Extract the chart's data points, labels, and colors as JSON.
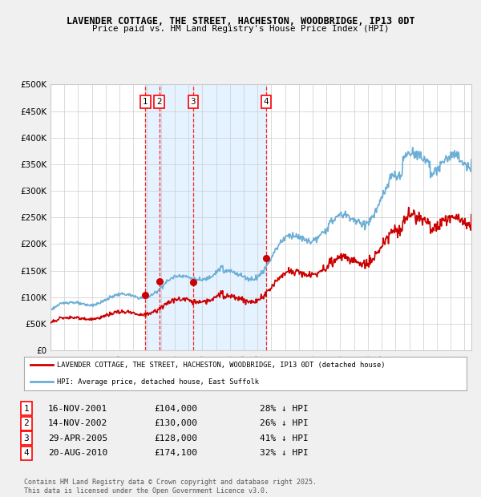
{
  "title": "LAVENDER COTTAGE, THE STREET, HACHESTON, WOODBRIDGE, IP13 0DT",
  "subtitle": "Price paid vs. HM Land Registry's House Price Index (HPI)",
  "ylim": [
    0,
    500000
  ],
  "yticks": [
    0,
    50000,
    100000,
    150000,
    200000,
    250000,
    300000,
    350000,
    400000,
    450000,
    500000
  ],
  "ytick_labels": [
    "£0",
    "£50K",
    "£100K",
    "£150K",
    "£200K",
    "£250K",
    "£300K",
    "£350K",
    "£400K",
    "£450K",
    "£500K"
  ],
  "hpi_color": "#6baed6",
  "price_color": "#cc0000",
  "bg_color": "#f0f0f0",
  "plot_bg": "#ffffff",
  "shade_color": "#ddeeff",
  "xlim_start": 1995,
  "xlim_end": 2025.5,
  "transactions": [
    {
      "label": "1",
      "date_x": 2001.88,
      "price": 104000
    },
    {
      "label": "2",
      "date_x": 2002.88,
      "price": 130000
    },
    {
      "label": "3",
      "date_x": 2005.33,
      "price": 128000
    },
    {
      "label": "4",
      "date_x": 2010.63,
      "price": 174100
    }
  ],
  "legend_entries": [
    "LAVENDER COTTAGE, THE STREET, HACHESTON, WOODBRIDGE, IP13 0DT (detached house)",
    "HPI: Average price, detached house, East Suffolk"
  ],
  "table_rows": [
    {
      "num": "1",
      "date": "16-NOV-2001",
      "price": "£104,000",
      "discount": "28% ↓ HPI"
    },
    {
      "num": "2",
      "date": "14-NOV-2002",
      "price": "£130,000",
      "discount": "26% ↓ HPI"
    },
    {
      "num": "3",
      "date": "29-APR-2005",
      "price": "£128,000",
      "discount": "41% ↓ HPI"
    },
    {
      "num": "4",
      "date": "20-AUG-2010",
      "price": "£174,100",
      "discount": "32% ↓ HPI"
    }
  ],
  "footnote": "Contains HM Land Registry data © Crown copyright and database right 2025.\nThis data is licensed under the Open Government Licence v3.0."
}
